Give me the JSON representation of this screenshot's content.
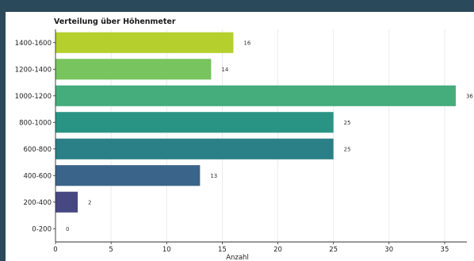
{
  "chart_data": {
    "type": "bar",
    "orientation": "horizontal",
    "title": "Verteilung über Höhenmeter",
    "xlabel": "Anzahl",
    "ylabel": "",
    "categories": [
      "1400-1600",
      "1200-1400",
      "1000-1200",
      "800-1000",
      "600-800",
      "400-600",
      "200-400",
      "0-200"
    ],
    "values": [
      16,
      14,
      36,
      25,
      25,
      13,
      2,
      0
    ],
    "colors": [
      "#b5cf2d",
      "#78c45f",
      "#45ac7c",
      "#2a9484",
      "#2b7f87",
      "#3a6489",
      "#474782",
      "#440154"
    ],
    "xticks": [
      0,
      5,
      10,
      15,
      20,
      25,
      30,
      35
    ],
    "xlim": [
      0,
      37
    ],
    "grid": "vertical"
  }
}
